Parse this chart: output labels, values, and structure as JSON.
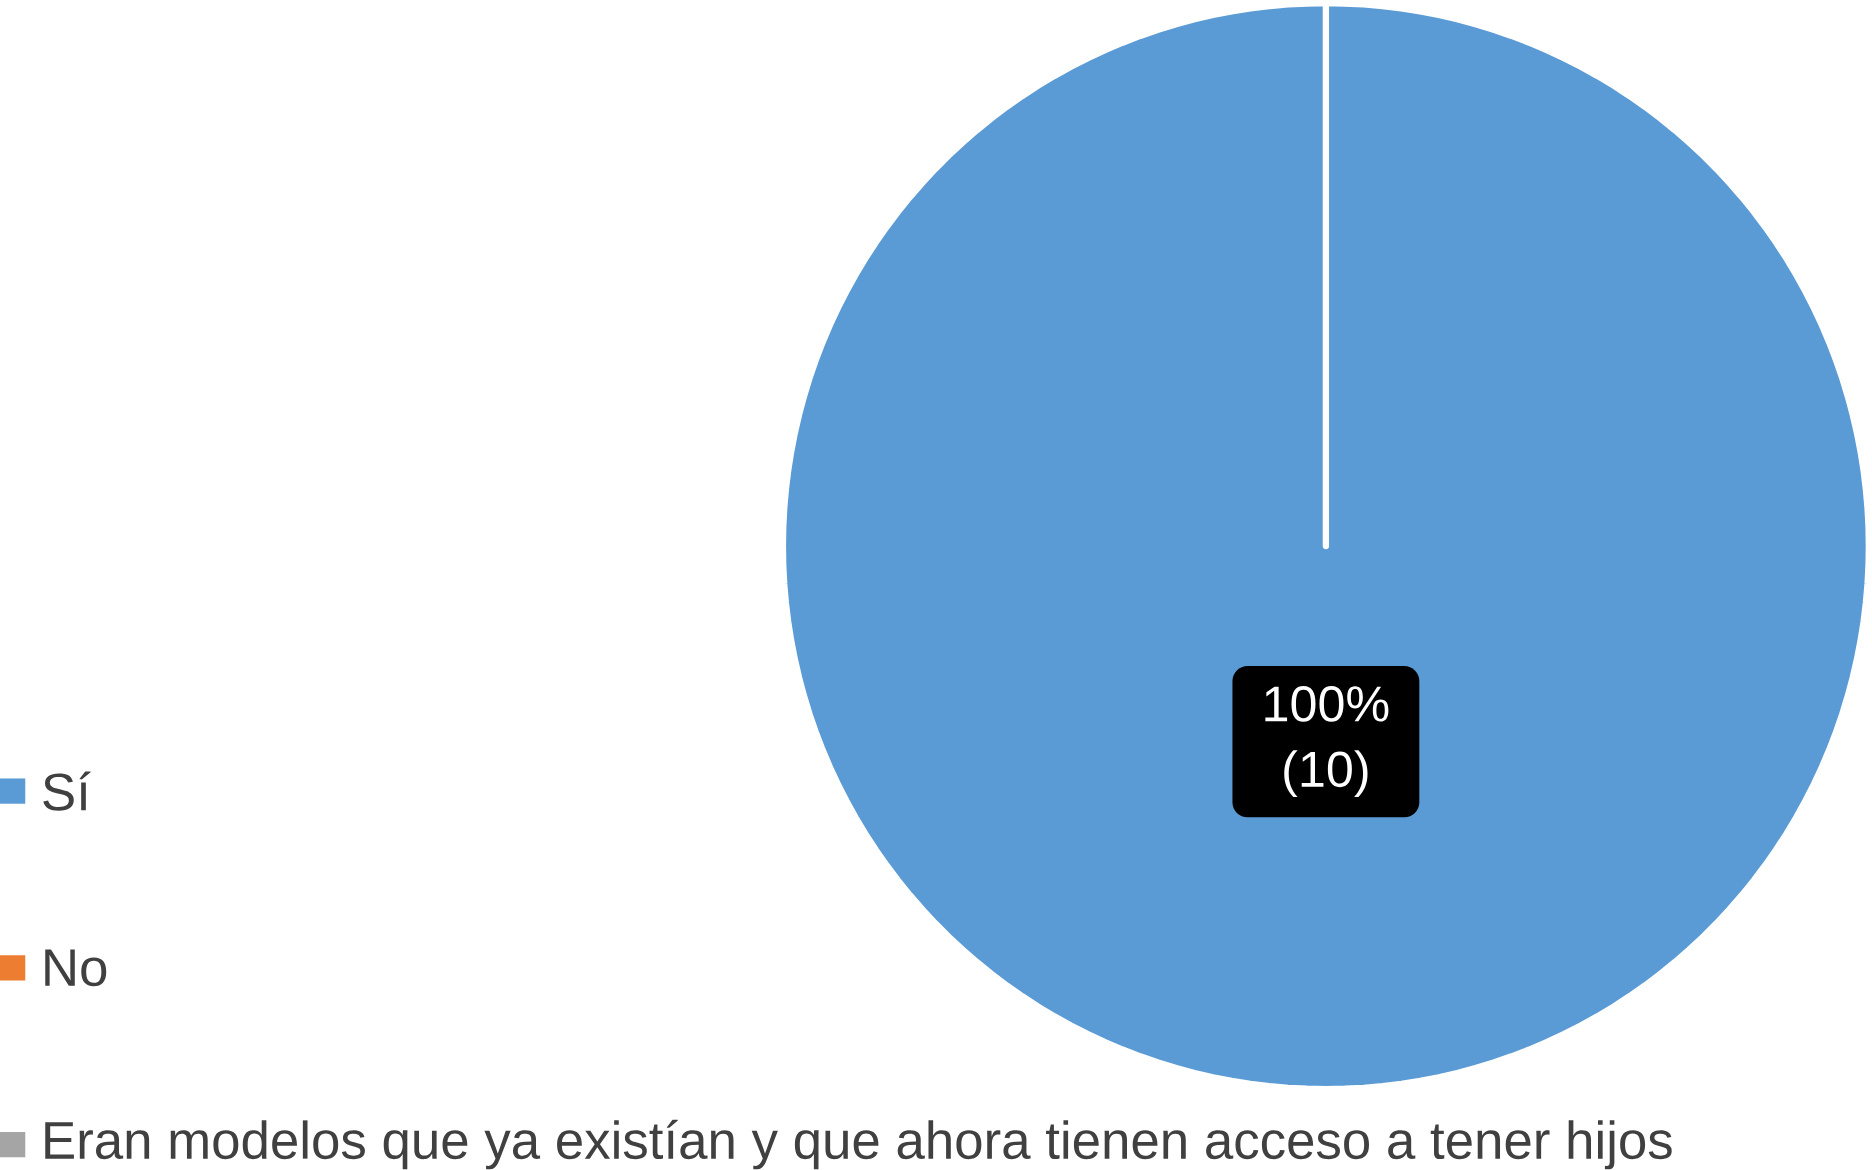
{
  "chart_data": {
    "type": "pie",
    "categories": [
      "Sí",
      "No",
      "Eran modelos que ya existían y que ahora tienen acceso a tener hijos"
    ],
    "values": [
      10,
      0,
      0
    ],
    "colors": [
      "#5b9bd5",
      "#ed7d31",
      "#a5a5a5"
    ],
    "value_labels": [
      "100% (10)",
      null,
      null
    ],
    "legend": "bottom left"
  }
}
